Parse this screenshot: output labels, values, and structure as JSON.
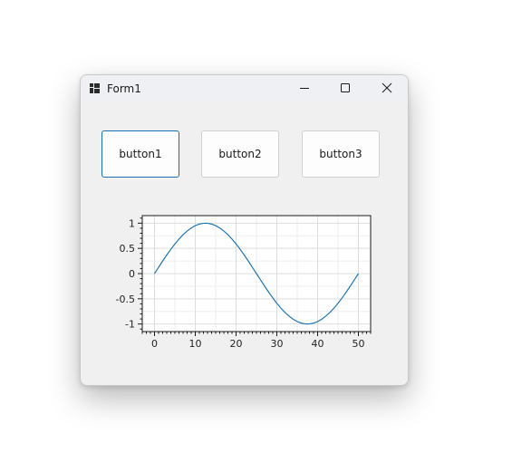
{
  "window": {
    "title": "Form1",
    "icon": "winforms-app-icon",
    "controls": {
      "minimize": "minimize-icon",
      "maximize": "maximize-icon",
      "close": "close-icon"
    }
  },
  "buttons": [
    {
      "label": "button1",
      "focused": true
    },
    {
      "label": "button2",
      "focused": false
    },
    {
      "label": "button3",
      "focused": false
    }
  ],
  "colors": {
    "focus_border": "#1a6fb8",
    "series": "#1f77b4"
  },
  "chart_data": {
    "type": "line",
    "title": "",
    "xlabel": "",
    "ylabel": "",
    "xlim": [
      -3,
      53
    ],
    "ylim": [
      -1.15,
      1.15
    ],
    "x_ticks": [
      0,
      10,
      20,
      30,
      40,
      50
    ],
    "y_ticks": [
      1,
      0.5,
      0,
      -0.5,
      -1
    ],
    "x_tick_labels": [
      "0",
      "10",
      "20",
      "30",
      "40",
      "50"
    ],
    "y_tick_labels": [
      "1",
      "0.5",
      "0",
      "-0.5",
      "-1"
    ],
    "grid": true,
    "legend": "none",
    "series": [
      {
        "x": [
          0,
          1,
          2,
          3,
          4,
          5,
          6,
          7,
          8,
          9,
          10,
          11,
          12,
          13,
          14,
          15,
          16,
          17,
          18,
          19,
          20,
          21,
          22,
          23,
          24,
          25,
          26,
          27,
          28,
          29,
          30,
          31,
          32,
          33,
          34,
          35,
          36,
          37,
          38,
          39,
          40,
          41,
          42,
          43,
          44,
          45,
          46,
          47,
          48,
          49,
          50
        ],
        "values": [
          0,
          0.125,
          0.249,
          0.368,
          0.482,
          0.588,
          0.685,
          0.771,
          0.844,
          0.905,
          0.951,
          0.982,
          0.998,
          0.998,
          0.982,
          0.951,
          0.905,
          0.844,
          0.771,
          0.685,
          0.588,
          0.482,
          0.368,
          0.249,
          0.125,
          0,
          -0.125,
          -0.249,
          -0.368,
          -0.482,
          -0.588,
          -0.685,
          -0.771,
          -0.844,
          -0.905,
          -0.951,
          -0.982,
          -0.998,
          -0.998,
          -0.982,
          -0.951,
          -0.905,
          -0.844,
          -0.771,
          -0.685,
          -0.588,
          -0.482,
          -0.368,
          -0.249,
          -0.125,
          0
        ]
      }
    ]
  }
}
